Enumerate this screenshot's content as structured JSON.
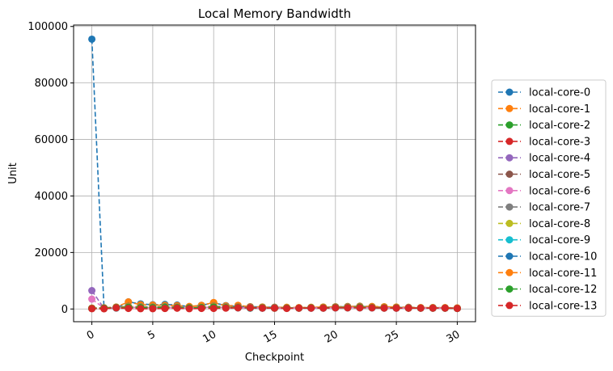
{
  "chart_data": {
    "type": "line",
    "title": "Local Memory Bandwidth",
    "xlabel": "Checkpoint",
    "ylabel": "Unit",
    "xlim": [
      -1.5,
      31.5
    ],
    "ylim": [
      -4500,
      100500
    ],
    "x_ticks": [
      0,
      5,
      10,
      15,
      20,
      25,
      30
    ],
    "x_tick_labels": [
      "0",
      "5",
      "10",
      "15",
      "20",
      "25",
      "30"
    ],
    "x_tick_rotation": -30,
    "y_ticks": [
      0,
      20000,
      40000,
      60000,
      80000,
      100000
    ],
    "y_tick_labels": [
      "0",
      "20000",
      "40000",
      "60000",
      "80000",
      "100000"
    ],
    "grid": true,
    "legend_position": "right",
    "x": [
      0,
      1,
      2,
      3,
      4,
      5,
      6,
      7,
      8,
      9,
      10,
      11,
      12,
      13,
      14,
      15,
      16,
      17,
      18,
      19,
      20,
      21,
      22,
      23,
      24,
      25,
      26,
      27,
      28,
      29,
      30
    ],
    "series": [
      {
        "name": "local-core-0",
        "color": "#1f77b4",
        "values": [
          95500,
          200,
          300,
          2500,
          1800,
          1500,
          1600,
          1400,
          800,
          1300,
          2200,
          1200,
          900,
          800,
          700,
          600,
          500,
          400,
          500,
          600,
          700,
          800,
          900,
          800,
          700,
          600,
          500,
          400,
          500,
          400,
          300
        ]
      },
      {
        "name": "local-core-1",
        "color": "#ff7f0e",
        "values": [
          300,
          400,
          700,
          2500,
          1500,
          1400,
          1300,
          1200,
          900,
          1300,
          2300,
          1100,
          1300,
          800,
          700,
          600,
          600,
          500,
          600,
          700,
          800,
          900,
          1000,
          900,
          800,
          700,
          600,
          500,
          500,
          500,
          400
        ]
      },
      {
        "name": "local-core-2",
        "color": "#2ca02c",
        "values": [
          200,
          300,
          600,
          900,
          700,
          600,
          700,
          600,
          500,
          600,
          900,
          700,
          600,
          500,
          500,
          400,
          400,
          300,
          400,
          500,
          600,
          600,
          700,
          600,
          500,
          400,
          400,
          300,
          300,
          300,
          200
        ]
      },
      {
        "name": "local-core-3",
        "color": "#d62728",
        "values": [
          200,
          100,
          500,
          300,
          200,
          200,
          200,
          300,
          200,
          300,
          300,
          400,
          500,
          400,
          400,
          300,
          300,
          300,
          300,
          400,
          400,
          500,
          500,
          400,
          400,
          300,
          300,
          300,
          300,
          300,
          200
        ]
      },
      {
        "name": "local-core-4",
        "color": "#9467bd",
        "values": [
          6500,
          200,
          400,
          600,
          500,
          400,
          500,
          400,
          300,
          500,
          600,
          500,
          400,
          400,
          300,
          300,
          300,
          300,
          300,
          400,
          400,
          500,
          500,
          400,
          400,
          300,
          300,
          300,
          300,
          300,
          200
        ]
      },
      {
        "name": "local-core-5",
        "color": "#8c564b",
        "values": [
          200,
          300,
          400,
          500,
          500,
          400,
          500,
          400,
          300,
          400,
          500,
          400,
          400,
          300,
          300,
          300,
          300,
          300,
          300,
          300,
          400,
          400,
          500,
          400,
          400,
          300,
          300,
          300,
          300,
          300,
          200
        ]
      },
      {
        "name": "local-core-6",
        "color": "#e377c2",
        "values": [
          3500,
          300,
          400,
          600,
          500,
          400,
          600,
          400,
          300,
          500,
          700,
          500,
          400,
          400,
          300,
          300,
          300,
          300,
          300,
          400,
          400,
          500,
          500,
          400,
          400,
          300,
          300,
          300,
          300,
          300,
          200
        ]
      },
      {
        "name": "local-core-7",
        "color": "#7f7f7f",
        "values": [
          200,
          300,
          400,
          500,
          400,
          400,
          500,
          400,
          300,
          400,
          500,
          400,
          400,
          300,
          300,
          300,
          300,
          300,
          300,
          300,
          400,
          400,
          400,
          400,
          300,
          300,
          300,
          300,
          300,
          300,
          200
        ]
      },
      {
        "name": "local-core-8",
        "color": "#bcbd22",
        "values": [
          200,
          300,
          400,
          700,
          600,
          500,
          600,
          500,
          400,
          600,
          800,
          600,
          500,
          400,
          400,
          300,
          300,
          300,
          400,
          400,
          500,
          500,
          600,
          500,
          400,
          400,
          300,
          300,
          300,
          300,
          200
        ]
      },
      {
        "name": "local-core-9",
        "color": "#17becf",
        "values": [
          200,
          300,
          400,
          500,
          400,
          400,
          500,
          400,
          300,
          400,
          500,
          400,
          400,
          300,
          300,
          300,
          300,
          300,
          300,
          300,
          400,
          400,
          400,
          400,
          300,
          300,
          300,
          300,
          300,
          300,
          200
        ]
      },
      {
        "name": "local-core-10",
        "color": "#1f77b4",
        "values": [
          300,
          400,
          600,
          900,
          800,
          700,
          800,
          700,
          500,
          700,
          1000,
          800,
          700,
          600,
          500,
          500,
          400,
          400,
          500,
          600,
          700,
          800,
          900,
          700,
          600,
          500,
          500,
          400,
          400,
          400,
          300
        ]
      },
      {
        "name": "local-core-11",
        "color": "#ff7f0e",
        "values": [
          300,
          400,
          600,
          800,
          700,
          600,
          700,
          600,
          500,
          700,
          900,
          700,
          600,
          500,
          500,
          400,
          400,
          400,
          500,
          600,
          600,
          700,
          800,
          700,
          600,
          500,
          400,
          400,
          400,
          400,
          300
        ]
      },
      {
        "name": "local-core-12",
        "color": "#2ca02c",
        "values": [
          200,
          300,
          500,
          600,
          500,
          500,
          600,
          500,
          400,
          500,
          700,
          500,
          500,
          400,
          400,
          300,
          300,
          300,
          400,
          400,
          500,
          500,
          600,
          500,
          400,
          400,
          300,
          300,
          300,
          300,
          200
        ]
      },
      {
        "name": "local-core-13",
        "color": "#d62728",
        "values": [
          100,
          100,
          400,
          200,
          100,
          100,
          200,
          300,
          100,
          200,
          200,
          300,
          400,
          400,
          300,
          300,
          200,
          300,
          300,
          300,
          400,
          400,
          400,
          400,
          300,
          300,
          300,
          300,
          300,
          300,
          200
        ]
      }
    ]
  }
}
